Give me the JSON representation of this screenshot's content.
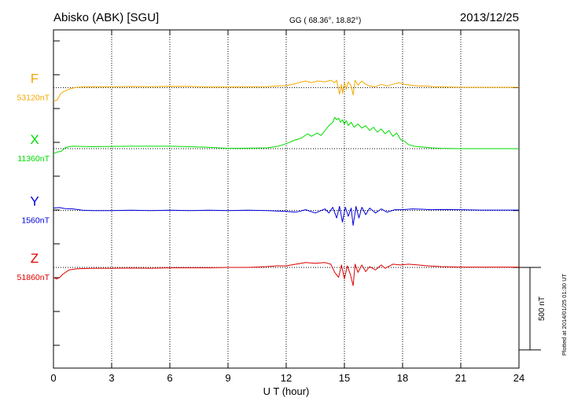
{
  "header": {
    "station": "Abisko (ABK)  [SGU]",
    "coords": "GG ( 68.36°,  18.82°)",
    "date": "2013/12/25"
  },
  "footer": {
    "plotted": "Plotted at 2014/01/25 01:30 UT",
    "scale_label": "500 nT"
  },
  "colors": {
    "F": "#f5a800",
    "X": "#00dd00",
    "Y": "#0000dd",
    "Z": "#dd0000",
    "axis": "#000000",
    "grid": "#000000"
  },
  "chart_data": {
    "type": "line",
    "title": "Abisko (ABK)  [SGU]",
    "xlabel": "U T (hour)",
    "ylabel": "",
    "xlim": [
      0,
      24
    ],
    "xticks": [
      0,
      3,
      6,
      9,
      12,
      15,
      18,
      21,
      24
    ],
    "tick_labels": [
      "0",
      "3",
      "6",
      "9",
      "12",
      "15",
      "18",
      "21",
      "24"
    ],
    "ylim_nT": [
      -650,
      1400
    ],
    "scale_bar_nT": 500,
    "grid": true,
    "series": [
      {
        "name": "F",
        "baseline_label": "53120nT",
        "baseline_nT": 1050,
        "points": [
          [
            0.0,
            -75
          ],
          [
            0.1,
            -80
          ],
          [
            0.2,
            -75
          ],
          [
            0.35,
            -40
          ],
          [
            0.5,
            -25
          ],
          [
            0.7,
            -15
          ],
          [
            0.9,
            -5
          ],
          [
            1.2,
            2
          ],
          [
            1.6,
            5
          ],
          [
            2,
            5
          ],
          [
            3,
            5
          ],
          [
            4,
            7
          ],
          [
            5,
            6
          ],
          [
            6,
            8
          ],
          [
            7,
            7
          ],
          [
            8,
            4
          ],
          [
            9,
            4
          ],
          [
            10,
            5
          ],
          [
            11,
            6
          ],
          [
            11.5,
            10
          ],
          [
            12,
            12
          ],
          [
            12.5,
            25
          ],
          [
            12.8,
            35
          ],
          [
            13,
            40
          ],
          [
            13.3,
            30
          ],
          [
            13.6,
            40
          ],
          [
            14,
            35
          ],
          [
            14.3,
            45
          ],
          [
            14.5,
            30
          ],
          [
            14.6,
            45
          ],
          [
            14.75,
            -40
          ],
          [
            14.85,
            20
          ],
          [
            14.9,
            -35
          ],
          [
            15.0,
            30
          ],
          [
            15.1,
            -10
          ],
          [
            15.2,
            35
          ],
          [
            15.35,
            10
          ],
          [
            15.45,
            -45
          ],
          [
            15.55,
            45
          ],
          [
            15.7,
            15
          ],
          [
            15.9,
            40
          ],
          [
            16.1,
            20
          ],
          [
            16.3,
            10
          ],
          [
            16.6,
            5
          ],
          [
            16.9,
            20
          ],
          [
            17.2,
            10
          ],
          [
            17.5,
            20
          ],
          [
            17.8,
            30
          ],
          [
            18.1,
            20
          ],
          [
            18.4,
            15
          ],
          [
            18.8,
            10
          ],
          [
            19.2,
            10
          ],
          [
            19.6,
            5
          ],
          [
            20,
            5
          ],
          [
            21,
            2
          ],
          [
            22,
            2
          ],
          [
            23,
            2
          ],
          [
            24,
            2
          ]
        ]
      },
      {
        "name": "X",
        "baseline_label": "11360nT",
        "baseline_nT": 680,
        "points": [
          [
            0.0,
            -30
          ],
          [
            0.2,
            -20
          ],
          [
            0.4,
            -15
          ],
          [
            0.6,
            5
          ],
          [
            0.8,
            12
          ],
          [
            1,
            15
          ],
          [
            2,
            12
          ],
          [
            3,
            14
          ],
          [
            4,
            15
          ],
          [
            5,
            15
          ],
          [
            6,
            15
          ],
          [
            7,
            12
          ],
          [
            8,
            8
          ],
          [
            9,
            2
          ],
          [
            10,
            3
          ],
          [
            11,
            5
          ],
          [
            11.6,
            15
          ],
          [
            12,
            30
          ],
          [
            12.4,
            50
          ],
          [
            12.8,
            65
          ],
          [
            13.1,
            90
          ],
          [
            13.3,
            75
          ],
          [
            13.6,
            95
          ],
          [
            13.8,
            80
          ],
          [
            14,
            110
          ],
          [
            14.2,
            140
          ],
          [
            14.4,
            160
          ],
          [
            14.5,
            190
          ],
          [
            14.6,
            175
          ],
          [
            14.7,
            185
          ],
          [
            14.8,
            160
          ],
          [
            14.9,
            175
          ],
          [
            15.0,
            150
          ],
          [
            15.1,
            170
          ],
          [
            15.2,
            140
          ],
          [
            15.35,
            160
          ],
          [
            15.5,
            130
          ],
          [
            15.7,
            150
          ],
          [
            15.9,
            125
          ],
          [
            16.1,
            140
          ],
          [
            16.3,
            110
          ],
          [
            16.5,
            130
          ],
          [
            16.7,
            100
          ],
          [
            16.9,
            120
          ],
          [
            17.1,
            90
          ],
          [
            17.3,
            110
          ],
          [
            17.5,
            75
          ],
          [
            17.7,
            95
          ],
          [
            17.9,
            55
          ],
          [
            18.1,
            45
          ],
          [
            18.3,
            25
          ],
          [
            18.6,
            15
          ],
          [
            19,
            10
          ],
          [
            19.5,
            5
          ],
          [
            20,
            2
          ],
          [
            21,
            0
          ],
          [
            22,
            0
          ],
          [
            23,
            0
          ],
          [
            24,
            0
          ]
        ]
      },
      {
        "name": "Y",
        "baseline_label": "1560nT",
        "baseline_nT": 305,
        "points": [
          [
            0.0,
            15
          ],
          [
            0.3,
            18
          ],
          [
            0.6,
            12
          ],
          [
            1,
            10
          ],
          [
            1.5,
            2
          ],
          [
            2,
            0
          ],
          [
            3,
            0
          ],
          [
            4,
            2
          ],
          [
            5,
            0
          ],
          [
            6,
            2
          ],
          [
            7,
            0
          ],
          [
            8,
            2
          ],
          [
            9,
            0
          ],
          [
            10,
            2
          ],
          [
            11,
            0
          ],
          [
            12,
            -5
          ],
          [
            12.5,
            -10
          ],
          [
            13,
            5
          ],
          [
            13.5,
            -15
          ],
          [
            14,
            10
          ],
          [
            14.2,
            -15
          ],
          [
            14.4,
            20
          ],
          [
            14.6,
            -45
          ],
          [
            14.75,
            25
          ],
          [
            14.9,
            -70
          ],
          [
            15.05,
            20
          ],
          [
            15.2,
            -35
          ],
          [
            15.35,
            15
          ],
          [
            15.45,
            -90
          ],
          [
            15.6,
            25
          ],
          [
            15.75,
            -45
          ],
          [
            15.9,
            20
          ],
          [
            16.1,
            -25
          ],
          [
            16.3,
            15
          ],
          [
            16.6,
            -15
          ],
          [
            16.9,
            10
          ],
          [
            17.2,
            -10
          ],
          [
            17.6,
            5
          ],
          [
            18,
            5
          ],
          [
            18.5,
            10
          ],
          [
            19,
            8
          ],
          [
            19.5,
            5
          ],
          [
            20,
            6
          ],
          [
            21,
            5
          ],
          [
            22,
            3
          ],
          [
            23,
            3
          ],
          [
            24,
            3
          ]
        ]
      },
      {
        "name": "Z",
        "baseline_label": "51860nT",
        "baseline_nT": -40,
        "points": [
          [
            0.0,
            -60
          ],
          [
            0.15,
            -70
          ],
          [
            0.3,
            -62
          ],
          [
            0.5,
            -40
          ],
          [
            0.8,
            -15
          ],
          [
            1.2,
            -8
          ],
          [
            2,
            -5
          ],
          [
            3,
            -5
          ],
          [
            4,
            -3
          ],
          [
            5,
            -5
          ],
          [
            6,
            -2
          ],
          [
            7,
            -2
          ],
          [
            8,
            -2
          ],
          [
            9,
            0
          ],
          [
            10,
            0
          ],
          [
            11,
            5
          ],
          [
            11.5,
            10
          ],
          [
            12,
            10
          ],
          [
            12.5,
            20
          ],
          [
            13,
            30
          ],
          [
            13.5,
            25
          ],
          [
            14,
            30
          ],
          [
            14.3,
            20
          ],
          [
            14.5,
            -30
          ],
          [
            14.7,
            -60
          ],
          [
            14.85,
            15
          ],
          [
            15.0,
            -70
          ],
          [
            15.15,
            10
          ],
          [
            15.3,
            -40
          ],
          [
            15.45,
            -110
          ],
          [
            15.55,
            20
          ],
          [
            15.7,
            -30
          ],
          [
            15.9,
            15
          ],
          [
            16.1,
            -25
          ],
          [
            16.3,
            5
          ],
          [
            16.6,
            -15
          ],
          [
            16.9,
            15
          ],
          [
            17.1,
            -5
          ],
          [
            17.5,
            20
          ],
          [
            17.9,
            15
          ],
          [
            18.3,
            20
          ],
          [
            18.8,
            15
          ],
          [
            19.3,
            10
          ],
          [
            20,
            5
          ],
          [
            21,
            2
          ],
          [
            22,
            2
          ],
          [
            23,
            2
          ],
          [
            24,
            2
          ]
        ]
      }
    ]
  }
}
